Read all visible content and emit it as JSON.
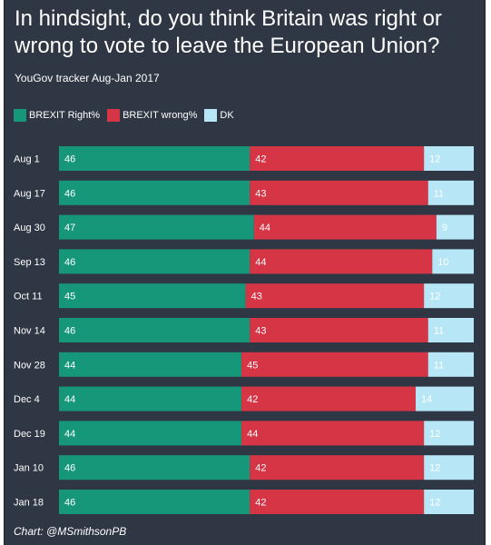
{
  "title": "In hindsight, do you think Britain was right or wrong to vote to leave the European Union?",
  "subtitle": "YouGov tracker Aug-Jan 2017",
  "credit": "Chart: @MSmithsonPB",
  "colors": {
    "background": "#2e3743",
    "right": "#16977a",
    "wrong": "#d63545",
    "dk": "#b7e7f7"
  },
  "chart_data": {
    "type": "bar",
    "orientation": "horizontal",
    "stacked": true,
    "legend_position": "top-left",
    "categories": [
      "Aug 1",
      "Aug 17",
      "Aug 30",
      "Sep 13",
      "Oct 11",
      "Nov 14",
      "Nov 28",
      "Dec 4",
      "Dec 19",
      "Jan 10",
      "Jan 18"
    ],
    "series": [
      {
        "name": "BREXIT Right%",
        "values": [
          46,
          46,
          47,
          46,
          45,
          46,
          44,
          44,
          44,
          46,
          46
        ]
      },
      {
        "name": "BREXIT wrong%",
        "values": [
          42,
          43,
          44,
          44,
          43,
          43,
          45,
          42,
          44,
          42,
          42
        ]
      },
      {
        "name": "DK",
        "values": [
          12,
          11,
          9,
          10,
          12,
          11,
          11,
          14,
          12,
          12,
          12
        ]
      }
    ]
  }
}
